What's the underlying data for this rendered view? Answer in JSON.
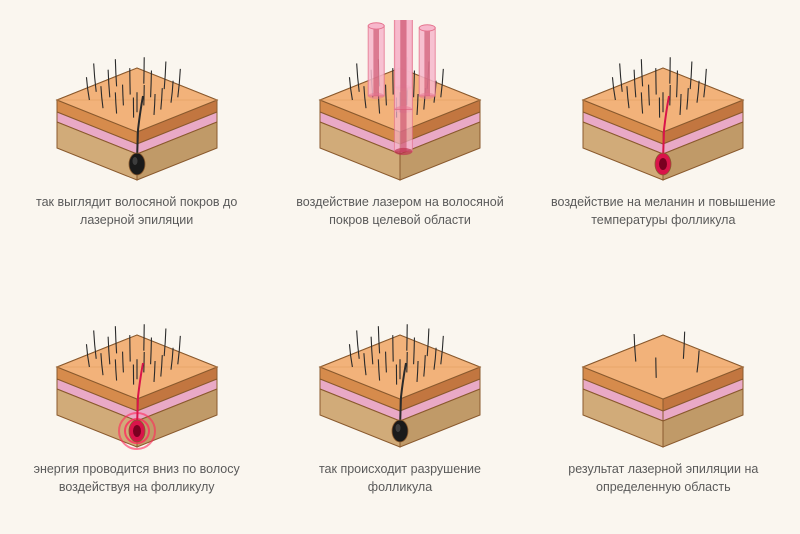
{
  "background_color": "#faf6ef",
  "caption_color": "#5a5a5a",
  "caption_fontsize": 12.5,
  "skin_block": {
    "epidermis_top": "#f2b27a",
    "epidermis_top_dark": "#e09a5e",
    "epidermis_side": "#d68b4c",
    "epidermis_side_dark": "#c27640",
    "dermis_top": "#f5c6dd",
    "dermis_side": "#e9a9c6",
    "subcutis_top": "#e6c393",
    "subcutis_side": "#d1ab79",
    "subcutis_side_dark": "#c09a68",
    "outline": "#8a5a2e"
  },
  "hair_color": "#2a2a2a",
  "follicle_black": "#1a1a1a",
  "follicle_red": "#d9144a",
  "follicle_red_glow": "#ff2a5c",
  "laser_tube_fill": "#f7b8cc",
  "laser_tube_stroke": "#e5748f",
  "laser_tube_inner": "#c03351",
  "stages": [
    {
      "id": "stage1",
      "caption": "так выглядит волосяной покров до лазерной эпиляции",
      "hairs": "dense",
      "follicle": "black",
      "lasers": false,
      "glow": false
    },
    {
      "id": "stage2",
      "caption": "воздействие лазером на волосяной покров целевой области",
      "hairs": "dense",
      "follicle": "none",
      "lasers": true,
      "glow": false
    },
    {
      "id": "stage3",
      "caption": "воздействие на меланин и повышение температуры фолликула",
      "hairs": "dense",
      "follicle": "red",
      "lasers": false,
      "glow": false
    },
    {
      "id": "stage4",
      "caption": "энергия проводится вниз по волосу воздействуя на фолликулу",
      "hairs": "dense",
      "follicle": "red",
      "lasers": false,
      "glow": true
    },
    {
      "id": "stage5",
      "caption": "так происходит разрушение фолликула",
      "hairs": "dense",
      "follicle": "black",
      "lasers": false,
      "glow": false
    },
    {
      "id": "stage6",
      "caption": "результат лазерной эпиляции на определенную область",
      "hairs": "sparse",
      "follicle": "none",
      "lasers": false,
      "glow": false
    }
  ]
}
